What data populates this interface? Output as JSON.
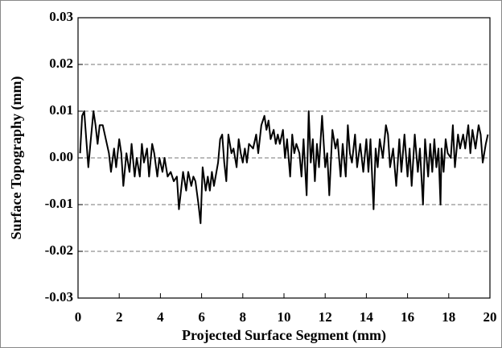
{
  "chart_data": {
    "type": "line",
    "x_label": "Projected Surface Segment (mm)",
    "y_label": "Surface Topography (mm)",
    "xlim": [
      0,
      20
    ],
    "xticks": [
      0,
      2,
      4,
      6,
      8,
      10,
      12,
      14,
      16,
      18,
      20
    ],
    "ylim": [
      -0.03,
      0.03
    ],
    "yticks": [
      -0.03,
      -0.02,
      -0.01,
      {
        "value": 0,
        "label": "0.00"
      },
      0.01,
      0.02,
      0.03
    ],
    "grid": true,
    "series": [
      {
        "color": "#000000",
        "x": [
          0.1,
          0.2,
          0.3,
          0.4,
          0.5,
          0.6,
          0.75,
          0.85,
          0.95,
          1.05,
          1.2,
          1.35,
          1.5,
          1.6,
          1.75,
          1.85,
          2.0,
          2.1,
          2.2,
          2.35,
          2.5,
          2.6,
          2.75,
          2.85,
          3.0,
          3.1,
          3.2,
          3.35,
          3.45,
          3.6,
          3.7,
          3.85,
          3.95,
          4.1,
          4.2,
          4.35,
          4.5,
          4.65,
          4.8,
          4.9,
          5.0,
          5.1,
          5.25,
          5.35,
          5.5,
          5.6,
          5.7,
          5.85,
          5.95,
          6.05,
          6.2,
          6.3,
          6.4,
          6.5,
          6.6,
          6.8,
          6.9,
          7.0,
          7.1,
          7.2,
          7.3,
          7.45,
          7.55,
          7.7,
          7.8,
          7.9,
          8.0,
          8.1,
          8.2,
          8.3,
          8.5,
          8.65,
          8.75,
          8.9,
          9.05,
          9.15,
          9.25,
          9.35,
          9.5,
          9.6,
          9.7,
          9.8,
          9.95,
          10.05,
          10.15,
          10.3,
          10.4,
          10.5,
          10.6,
          10.75,
          10.85,
          10.95,
          11.1,
          11.2,
          11.3,
          11.4,
          11.5,
          11.6,
          11.7,
          11.85,
          12.0,
          12.1,
          12.2,
          12.35,
          12.5,
          12.6,
          12.75,
          12.85,
          13.0,
          13.1,
          13.2,
          13.3,
          13.45,
          13.55,
          13.7,
          13.85,
          14.0,
          14.1,
          14.2,
          14.35,
          14.45,
          14.55,
          14.65,
          14.8,
          14.95,
          15.05,
          15.15,
          15.3,
          15.45,
          15.6,
          15.7,
          15.85,
          16.0,
          16.1,
          16.2,
          16.35,
          16.5,
          16.6,
          16.75,
          16.85,
          17.0,
          17.1,
          17.2,
          17.3,
          17.4,
          17.5,
          17.6,
          17.65,
          17.75,
          17.85,
          17.95,
          18.1,
          18.2,
          18.3,
          18.45,
          18.55,
          18.7,
          18.8,
          18.95,
          19.05,
          19.15,
          19.3,
          19.45,
          19.55,
          19.65,
          19.8,
          19.9
        ],
        "values": [
          0.001,
          0.009,
          0.01,
          0.004,
          -0.002,
          0.003,
          0.01,
          0.007,
          0.003,
          0.007,
          0.007,
          0.004,
          0.001,
          -0.003,
          0.002,
          -0.002,
          0.004,
          0.001,
          -0.006,
          0.001,
          -0.003,
          0.003,
          -0.004,
          0.0,
          -0.004,
          0.003,
          -0.001,
          0.002,
          -0.004,
          0.003,
          0.001,
          -0.004,
          0.0,
          -0.003,
          0.0,
          -0.004,
          -0.003,
          -0.005,
          -0.004,
          -0.011,
          -0.007,
          -0.003,
          -0.007,
          -0.003,
          -0.006,
          -0.004,
          -0.005,
          -0.01,
          -0.014,
          -0.002,
          -0.007,
          -0.004,
          -0.007,
          -0.003,
          -0.006,
          -0.001,
          0.004,
          0.005,
          -0.001,
          -0.005,
          0.005,
          0.001,
          0.002,
          -0.002,
          0.004,
          0.001,
          -0.001,
          0.002,
          -0.001,
          0.003,
          0.002,
          0.005,
          0.001,
          0.007,
          0.009,
          0.006,
          0.008,
          0.004,
          0.006,
          0.003,
          0.005,
          0.003,
          0.006,
          0.0,
          0.004,
          -0.004,
          0.005,
          0.001,
          0.003,
          0.001,
          -0.004,
          0.004,
          -0.008,
          0.01,
          -0.001,
          0.004,
          -0.005,
          0.003,
          -0.002,
          0.009,
          -0.002,
          0.001,
          -0.008,
          0.006,
          0.002,
          0.004,
          -0.004,
          0.003,
          -0.004,
          0.007,
          0.001,
          -0.001,
          0.005,
          -0.002,
          0.003,
          -0.003,
          0.004,
          -0.003,
          0.004,
          -0.011,
          0.002,
          -0.002,
          0.004,
          0.0,
          0.007,
          0.005,
          -0.002,
          0.002,
          -0.006,
          0.004,
          -0.003,
          0.005,
          -0.004,
          0.002,
          -0.006,
          0.005,
          -0.003,
          0.002,
          -0.01,
          0.004,
          -0.004,
          0.003,
          -0.003,
          0.004,
          -0.002,
          0.002,
          -0.01,
          0.002,
          -0.003,
          0.004,
          0.001,
          0.0,
          0.007,
          -0.002,
          0.005,
          0.002,
          0.005,
          0.002,
          0.007,
          0.001,
          0.006,
          0.002,
          0.007,
          0.005,
          -0.001,
          0.003,
          0.005
        ]
      }
    ]
  }
}
